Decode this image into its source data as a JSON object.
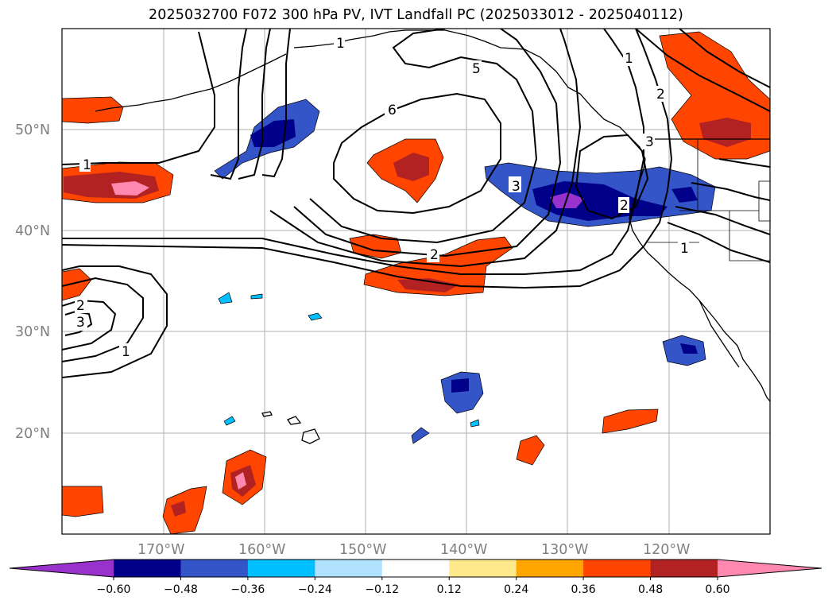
{
  "title": "2025032700 F072 300 hPa PV, IVT Landfall PC (2025033012 - 2025040112)",
  "lat_labels": [
    "50°N",
    "40°N",
    "30°N",
    "20°N"
  ],
  "lon_labels": [
    "170°W",
    "160°W",
    "150°W",
    "140°W",
    "130°W",
    "120°W"
  ],
  "contour_labels": [
    "1",
    "2",
    "3",
    "5",
    "6",
    "1",
    "2",
    "3",
    "1",
    "2",
    "3",
    "1",
    "1",
    "2"
  ],
  "colorbar": {
    "ticks": [
      "−0.60",
      "−0.48",
      "−0.36",
      "−0.24",
      "−0.12",
      "0.12",
      "0.24",
      "0.36",
      "0.48",
      "0.60"
    ],
    "colors": [
      "#9932cc",
      "#00008b",
      "#3455c8",
      "#00bfff",
      "#b0e2ff",
      "#ffffff",
      "#ffe98a",
      "#ffa500",
      "#ff4500",
      "#b22222",
      "#ff88b0"
    ]
  }
}
